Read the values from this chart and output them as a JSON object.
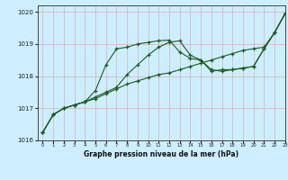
{
  "title": "Graphe pression niveau de la mer (hPa)",
  "background_color": "#cceeff",
  "grid_color_major": "#d9b0b0",
  "line_color": "#1a5c1a",
  "xlim": [
    -0.5,
    23
  ],
  "ylim": [
    1016,
    1020.2
  ],
  "yticks": [
    1016,
    1017,
    1018,
    1019,
    1020
  ],
  "xtick_labels": [
    "0",
    "1",
    "2",
    "3",
    "4",
    "5",
    "6",
    "7",
    "8",
    "9",
    "10",
    "11",
    "12",
    "13",
    "14",
    "15",
    "16",
    "17",
    "18",
    "19",
    "20",
    "21",
    "22",
    "23"
  ],
  "series1_x": [
    0,
    1,
    2,
    3,
    4,
    5,
    6,
    7,
    8,
    9,
    10,
    11,
    12,
    13,
    14,
    15,
    16,
    17,
    18,
    19,
    20,
    21,
    22,
    23
  ],
  "series1_y": [
    1016.25,
    1016.8,
    1017.0,
    1017.1,
    1017.2,
    1017.3,
    1017.45,
    1017.6,
    1017.75,
    1017.85,
    1017.95,
    1018.05,
    1018.1,
    1018.2,
    1018.3,
    1018.4,
    1018.5,
    1018.6,
    1018.7,
    1018.8,
    1018.85,
    1018.9,
    1019.35,
    1019.95
  ],
  "series2_x": [
    0,
    1,
    2,
    3,
    4,
    5,
    6,
    7,
    8,
    9,
    10,
    11,
    12,
    13,
    14,
    15,
    16,
    17,
    18,
    19,
    20,
    21,
    22,
    23
  ],
  "series2_y": [
    1016.25,
    1016.8,
    1017.0,
    1017.1,
    1017.2,
    1017.55,
    1018.35,
    1018.85,
    1018.9,
    1019.0,
    1019.05,
    1019.1,
    1019.12,
    1018.75,
    1018.55,
    1018.5,
    1018.2,
    1018.15,
    1018.2,
    1018.25,
    1018.3,
    1018.85,
    1019.35,
    1019.95
  ],
  "series3_x": [
    0,
    1,
    2,
    3,
    4,
    5,
    6,
    7,
    8,
    9,
    10,
    11,
    12,
    13,
    14,
    15,
    16,
    17,
    18,
    19,
    20,
    21,
    22,
    23
  ],
  "series3_y": [
    1016.25,
    1016.8,
    1017.0,
    1017.1,
    1017.2,
    1017.35,
    1017.5,
    1017.65,
    1018.05,
    1018.35,
    1018.65,
    1018.9,
    1019.05,
    1019.1,
    1018.65,
    1018.5,
    1018.15,
    1018.2,
    1018.2,
    1018.25,
    1018.3,
    1018.85,
    1019.35,
    1019.95
  ],
  "figsize": [
    3.2,
    2.0
  ],
  "dpi": 100
}
